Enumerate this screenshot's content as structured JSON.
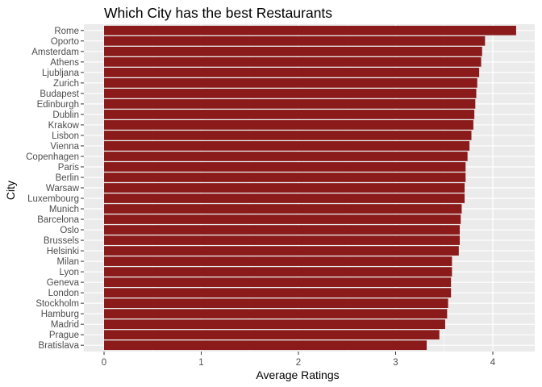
{
  "chart_data": {
    "type": "bar",
    "orientation": "horizontal",
    "title": "Which City has the best Restaurants",
    "xlabel": "Average Ratings",
    "ylabel": "City",
    "xlim": [
      0,
      4.45
    ],
    "xticks": [
      0,
      1,
      2,
      3,
      4
    ],
    "grid": true,
    "legend": "none",
    "bar_color": "#8b1a1a",
    "panel_color": "#ebebeb",
    "categories": [
      "Rome",
      "Oporto",
      "Amsterdam",
      "Athens",
      "Ljubljana",
      "Zurich",
      "Budapest",
      "Edinburgh",
      "Dublin",
      "Krakow",
      "Lisbon",
      "Vienna",
      "Copenhagen",
      "Paris",
      "Berlin",
      "Warsaw",
      "Luxembourg",
      "Munich",
      "Barcelona",
      "Oslo",
      "Brussels",
      "Helsinki",
      "Milan",
      "Lyon",
      "Geneva",
      "London",
      "Stockholm",
      "Hamburg",
      "Madrid",
      "Prague",
      "Bratislava"
    ],
    "values": [
      4.24,
      3.92,
      3.89,
      3.88,
      3.86,
      3.84,
      3.83,
      3.82,
      3.81,
      3.8,
      3.78,
      3.76,
      3.74,
      3.72,
      3.72,
      3.71,
      3.71,
      3.68,
      3.67,
      3.66,
      3.66,
      3.65,
      3.58,
      3.58,
      3.57,
      3.57,
      3.54,
      3.53,
      3.51,
      3.45,
      3.32
    ]
  }
}
